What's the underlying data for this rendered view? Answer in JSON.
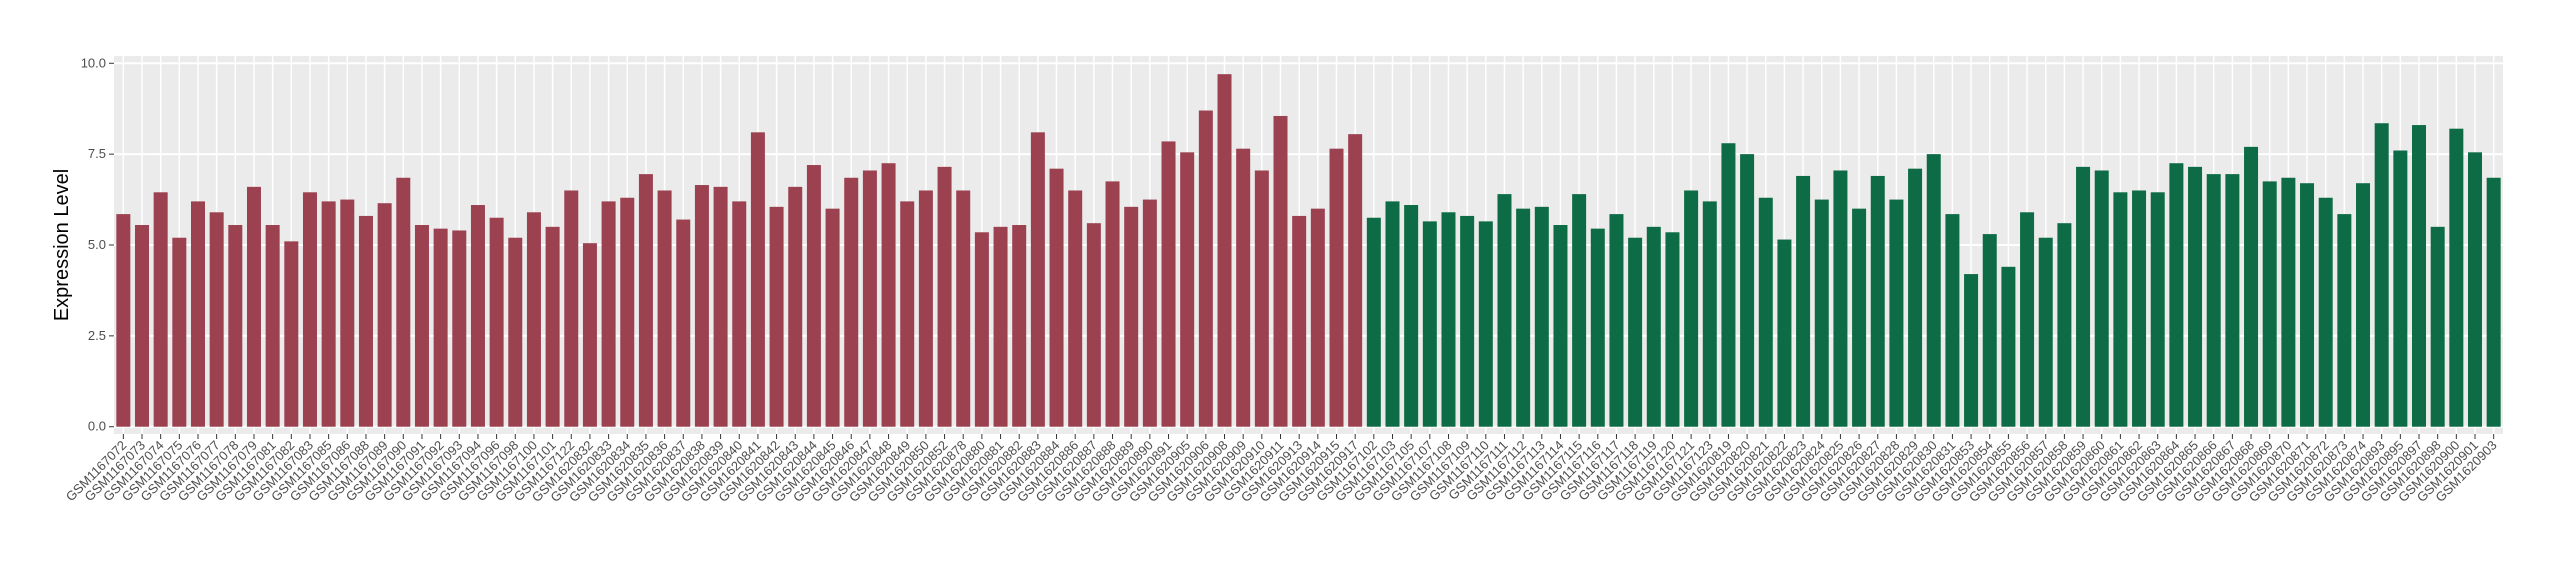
{
  "chart_data": {
    "type": "bar",
    "y_label": "Expression Level",
    "categories": [
      "GSM1167072",
      "GSM1167073",
      "GSM1167074",
      "GSM1167075",
      "GSM1167076",
      "GSM1167077",
      "GSM1167078",
      "GSM1167079",
      "GSM1167081",
      "GSM1167082",
      "GSM1167083",
      "GSM1167085",
      "GSM1167086",
      "GSM1167088",
      "GSM1167089",
      "GSM1167090",
      "GSM1167091",
      "GSM1167092",
      "GSM1167093",
      "GSM1167094",
      "GSM1167096",
      "GSM1167098",
      "GSM1167100",
      "GSM1167101",
      "GSM1167122",
      "GSM1620832",
      "GSM1620833",
      "GSM1620834",
      "GSM1620835",
      "GSM1620836",
      "GSM1620837",
      "GSM1620838",
      "GSM1620839",
      "GSM1620840",
      "GSM1620841",
      "GSM1620842",
      "GSM1620843",
      "GSM1620844",
      "GSM1620845",
      "GSM1620846",
      "GSM1620847",
      "GSM1620848",
      "GSM1620849",
      "GSM1620850",
      "GSM1620852",
      "GSM1620878",
      "GSM1620880",
      "GSM1620881",
      "GSM1620882",
      "GSM1620883",
      "GSM1620884",
      "GSM1620886",
      "GSM1620887",
      "GSM1620888",
      "GSM1620889",
      "GSM1620890",
      "GSM1620891",
      "GSM1620905",
      "GSM1620906",
      "GSM1620908",
      "GSM1620909",
      "GSM1620910",
      "GSM1620911",
      "GSM1620913",
      "GSM1620914",
      "GSM1620915",
      "GSM1620917",
      "GSM1167102",
      "GSM1167103",
      "GSM1167105",
      "GSM1167107",
      "GSM1167108",
      "GSM1167109",
      "GSM1167110",
      "GSM1167111",
      "GSM1167112",
      "GSM1167113",
      "GSM1167114",
      "GSM1167115",
      "GSM1167116",
      "GSM1167117",
      "GSM1167118",
      "GSM1167119",
      "GSM1167120",
      "GSM1167121",
      "GSM1167123",
      "GSM1620819",
      "GSM1620820",
      "GSM1620821",
      "GSM1620822",
      "GSM1620823",
      "GSM1620824",
      "GSM1620825",
      "GSM1620826",
      "GSM1620827",
      "GSM1620828",
      "GSM1620829",
      "GSM1620830",
      "GSM1620831",
      "GSM1620853",
      "GSM1620854",
      "GSM1620855",
      "GSM1620856",
      "GSM1620857",
      "GSM1620858",
      "GSM1620859",
      "GSM1620860",
      "GSM1620861",
      "GSM1620862",
      "GSM1620863",
      "GSM1620864",
      "GSM1620865",
      "GSM1620866",
      "GSM1620867",
      "GSM1620868",
      "GSM1620869",
      "GSM1620870",
      "GSM1620871",
      "GSM1620872",
      "GSM1620873",
      "GSM1620874",
      "GSM1620893",
      "GSM1620895",
      "GSM1620897",
      "GSM1620898",
      "GSM1620900",
      "GSM1620901",
      "GSM1620903"
    ],
    "series": [
      {
        "color": "#9b4150",
        "values": [
          5.85,
          5.55,
          6.45,
          5.2,
          6.2,
          5.9,
          5.55,
          6.6,
          5.55,
          5.1,
          6.45,
          6.2,
          6.25,
          5.8,
          6.15,
          6.85,
          5.55,
          5.45,
          5.4,
          6.1,
          5.75,
          5.2,
          5.9,
          5.5,
          6.5,
          5.05,
          6.2,
          6.3,
          6.95,
          6.5,
          5.7,
          6.65,
          6.6,
          6.2,
          8.1,
          6.05,
          6.6,
          7.2,
          6.0,
          6.85,
          7.05,
          7.25,
          6.2,
          6.5,
          7.15,
          6.5,
          5.35,
          5.5,
          5.55,
          8.1,
          7.1,
          6.5,
          5.6,
          6.75,
          6.05,
          6.25,
          7.85,
          7.55,
          8.7,
          9.7,
          7.65,
          7.05,
          8.55,
          5.8,
          6.0,
          7.65,
          8.05,
          null,
          null,
          null,
          null,
          null,
          null,
          null,
          null,
          null,
          null,
          null,
          null,
          null,
          null,
          null,
          null,
          null,
          null,
          null,
          null,
          null,
          null,
          null,
          null,
          null,
          null,
          null,
          null,
          null,
          null,
          null,
          null,
          null,
          null,
          null,
          null,
          null,
          null,
          null,
          null,
          null,
          null,
          null,
          null,
          null,
          null,
          null,
          null,
          null,
          null,
          null,
          null,
          null,
          null,
          null,
          null,
          null,
          null,
          null,
          null,
          null
        ]
      },
      {
        "color": "#0d6b45",
        "values": [
          null,
          null,
          null,
          null,
          null,
          null,
          null,
          null,
          null,
          null,
          null,
          null,
          null,
          null,
          null,
          null,
          null,
          null,
          null,
          null,
          null,
          null,
          null,
          null,
          null,
          null,
          null,
          null,
          null,
          null,
          null,
          null,
          null,
          null,
          null,
          null,
          null,
          null,
          null,
          null,
          null,
          null,
          null,
          null,
          null,
          null,
          null,
          null,
          null,
          null,
          null,
          null,
          null,
          null,
          null,
          null,
          null,
          null,
          null,
          null,
          null,
          null,
          null,
          null,
          null,
          null,
          null,
          5.75,
          6.2,
          6.1,
          5.65,
          5.9,
          5.8,
          5.65,
          6.4,
          6.0,
          6.05,
          5.55,
          6.4,
          5.45,
          5.85,
          5.2,
          5.5,
          5.35,
          6.5,
          6.2,
          7.8,
          7.5,
          6.3,
          5.15,
          6.9,
          6.25,
          7.05,
          6.0,
          6.9,
          6.25,
          7.1,
          7.5,
          5.85,
          4.2,
          5.3,
          4.4,
          5.9,
          5.2,
          5.6,
          7.15,
          7.05,
          6.45,
          6.5,
          6.45,
          7.25,
          7.15,
          6.95,
          6.95,
          7.7,
          6.75,
          6.85,
          6.7,
          6.3,
          5.85,
          6.7,
          8.35,
          7.6,
          8.3,
          5.5,
          8.2,
          7.55,
          6.85
        ]
      }
    ],
    "ylim": [
      -0.2,
      10.2
    ],
    "yticks": [
      {
        "value": 0,
        "label": "0.0"
      },
      2.5,
      {
        "value": 5,
        "label": "5.0"
      },
      7.5,
      {
        "value": 10,
        "label": "10.0"
      }
    ],
    "grid": true,
    "panel_color": "#ebebeb"
  }
}
